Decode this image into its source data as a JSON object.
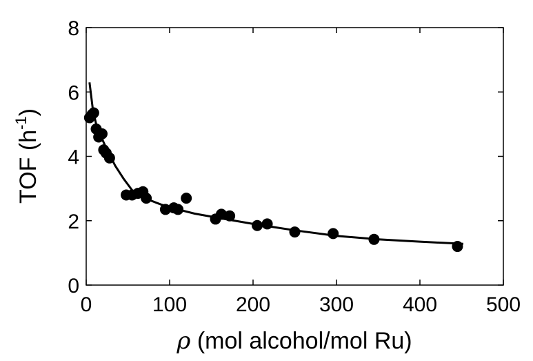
{
  "chart_data": {
    "type": "scatter",
    "title": "",
    "xlabel_symbol": "ρ",
    "xlabel_text": " (mol alcohol/mol Ru)",
    "ylabel_main": "TOF (h",
    "ylabel_sup": "-1",
    "ylabel_close": ")",
    "xlim": [
      0,
      500
    ],
    "ylim": [
      0,
      8
    ],
    "xticks": [
      0,
      100,
      200,
      300,
      400,
      500
    ],
    "yticks": [
      0,
      2,
      4,
      6,
      8
    ],
    "grid": false,
    "legend": "none",
    "colors": {
      "marker": "#000000",
      "line": "#000000",
      "background": "#ffffff"
    },
    "series": [
      {
        "type": "scatter",
        "points": [
          {
            "x": 4,
            "y": 5.2
          },
          {
            "x": 7,
            "y": 5.3
          },
          {
            "x": 9,
            "y": 5.35
          },
          {
            "x": 12,
            "y": 4.85
          },
          {
            "x": 15,
            "y": 4.6
          },
          {
            "x": 19,
            "y": 4.7
          },
          {
            "x": 21,
            "y": 4.2
          },
          {
            "x": 24,
            "y": 4.1
          },
          {
            "x": 28,
            "y": 3.95
          },
          {
            "x": 48,
            "y": 2.8
          },
          {
            "x": 55,
            "y": 2.8
          },
          {
            "x": 62,
            "y": 2.85
          },
          {
            "x": 68,
            "y": 2.9
          },
          {
            "x": 72,
            "y": 2.7
          },
          {
            "x": 95,
            "y": 2.35
          },
          {
            "x": 105,
            "y": 2.4
          },
          {
            "x": 110,
            "y": 2.35
          },
          {
            "x": 120,
            "y": 2.7
          },
          {
            "x": 155,
            "y": 2.05
          },
          {
            "x": 162,
            "y": 2.2
          },
          {
            "x": 172,
            "y": 2.15
          },
          {
            "x": 205,
            "y": 1.85
          },
          {
            "x": 217,
            "y": 1.9
          },
          {
            "x": 250,
            "y": 1.65
          },
          {
            "x": 296,
            "y": 1.6
          },
          {
            "x": 345,
            "y": 1.42
          },
          {
            "x": 445,
            "y": 1.2
          }
        ]
      },
      {
        "type": "line",
        "points": [
          {
            "x": 4,
            "y": 6.3
          },
          {
            "x": 8,
            "y": 5.45
          },
          {
            "x": 12,
            "y": 5.0
          },
          {
            "x": 18,
            "y": 4.6
          },
          {
            "x": 25,
            "y": 4.2
          },
          {
            "x": 35,
            "y": 3.7
          },
          {
            "x": 45,
            "y": 3.3
          },
          {
            "x": 55,
            "y": 2.95
          },
          {
            "x": 70,
            "y": 2.7
          },
          {
            "x": 90,
            "y": 2.5
          },
          {
            "x": 110,
            "y": 2.35
          },
          {
            "x": 130,
            "y": 2.22
          },
          {
            "x": 160,
            "y": 2.08
          },
          {
            "x": 200,
            "y": 1.9
          },
          {
            "x": 250,
            "y": 1.7
          },
          {
            "x": 300,
            "y": 1.53
          },
          {
            "x": 350,
            "y": 1.42
          },
          {
            "x": 400,
            "y": 1.35
          },
          {
            "x": 452,
            "y": 1.28
          }
        ]
      }
    ]
  }
}
